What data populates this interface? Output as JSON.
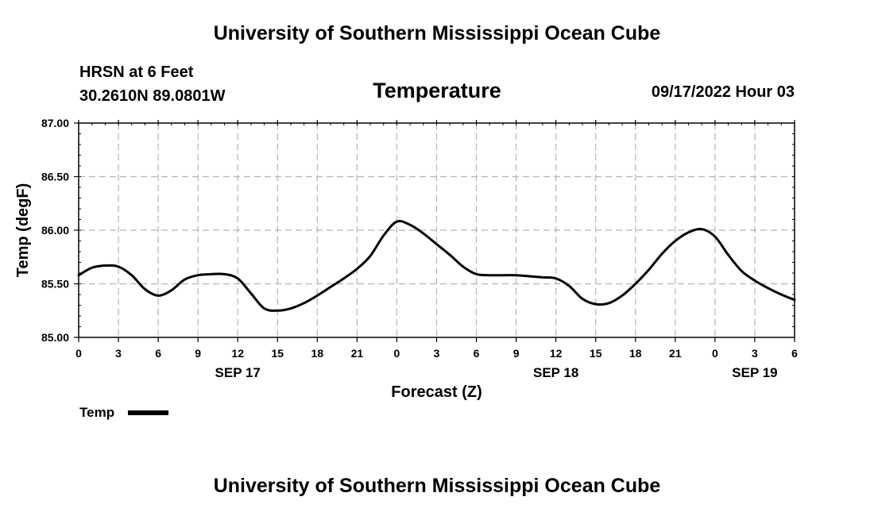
{
  "header": {
    "title_top": "University of Southern Mississippi Ocean Cube",
    "station_line1": "HRSN at 6 Feet",
    "station_line2": "30.2610N  89.0801W",
    "datetime": "09/17/2022 Hour 03",
    "title_bottom": "University of Southern Mississippi Ocean Cube"
  },
  "chart_data": {
    "type": "line",
    "title": "Temperature",
    "xlabel": "Forecast (Z)",
    "ylabel": "Temp (degF)",
    "ylim": [
      85.0,
      87.0
    ],
    "y_ticks": [
      "85.00",
      "85.50",
      "86.00",
      "86.50",
      "87.00"
    ],
    "x_range_hours": [
      0,
      54
    ],
    "x_tick_labels": [
      "0",
      "3",
      "6",
      "9",
      "12",
      "15",
      "18",
      "21",
      "0",
      "3",
      "6",
      "9",
      "12",
      "15",
      "18",
      "21",
      "0",
      "3",
      "6"
    ],
    "date_labels": [
      {
        "label": "SEP 17",
        "hour": 12
      },
      {
        "label": "SEP 18",
        "hour": 36
      },
      {
        "label": "SEP 19",
        "hour": 51
      }
    ],
    "grid": true,
    "legend_position": "bottom-left",
    "series": [
      {
        "name": "Temp",
        "color": "#000000",
        "x_hours": [
          0,
          1,
          2,
          3,
          4,
          5,
          6,
          7,
          8,
          9,
          10,
          11,
          12,
          13,
          14,
          15,
          16,
          17,
          18,
          19,
          20,
          21,
          22,
          23,
          24,
          25,
          26,
          27,
          28,
          29,
          30,
          31,
          32,
          33,
          34,
          35,
          36,
          37,
          38,
          39,
          40,
          41,
          42,
          43,
          44,
          45,
          46,
          47,
          48,
          49,
          50,
          51,
          52,
          53,
          54
        ],
        "values": [
          85.58,
          85.65,
          85.67,
          85.66,
          85.58,
          85.45,
          85.39,
          85.44,
          85.54,
          85.58,
          85.59,
          85.59,
          85.55,
          85.41,
          85.27,
          85.25,
          85.27,
          85.32,
          85.39,
          85.47,
          85.55,
          85.64,
          85.76,
          85.95,
          86.08,
          86.05,
          85.97,
          85.87,
          85.77,
          85.66,
          85.59,
          85.58,
          85.58,
          85.58,
          85.57,
          85.56,
          85.55,
          85.48,
          85.36,
          85.31,
          85.32,
          85.39,
          85.5,
          85.63,
          85.78,
          85.9,
          85.98,
          86.01,
          85.94,
          85.77,
          85.62,
          85.53,
          85.46,
          85.4,
          85.35
        ]
      }
    ]
  }
}
